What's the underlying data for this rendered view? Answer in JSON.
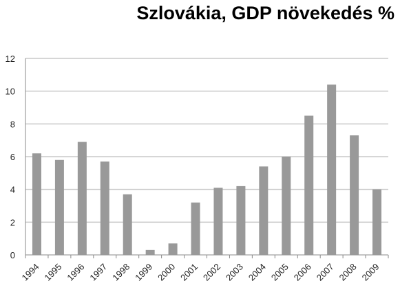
{
  "chart_data": {
    "type": "bar",
    "title": "Szlovákia, GDP növekedés %",
    "xlabel": "",
    "ylabel": "",
    "categories": [
      "1994",
      "1995",
      "1996",
      "1997",
      "1998",
      "1999",
      "2000",
      "2001",
      "2002",
      "2003",
      "2004",
      "2005",
      "2006",
      "2007",
      "2008",
      "2009"
    ],
    "values": [
      6.2,
      5.8,
      6.9,
      5.7,
      3.7,
      0.3,
      0.7,
      3.2,
      4.1,
      4.2,
      5.4,
      6.0,
      8.5,
      10.4,
      7.3,
      4.0
    ],
    "ylim": [
      0,
      12
    ],
    "yticks": [
      "0",
      "2",
      "4",
      "6",
      "8",
      "10",
      "12"
    ],
    "grid": true,
    "legend": "none",
    "colors": {
      "bar": "#999999",
      "grid": "#c8c8c8",
      "axis": "#888888"
    }
  }
}
